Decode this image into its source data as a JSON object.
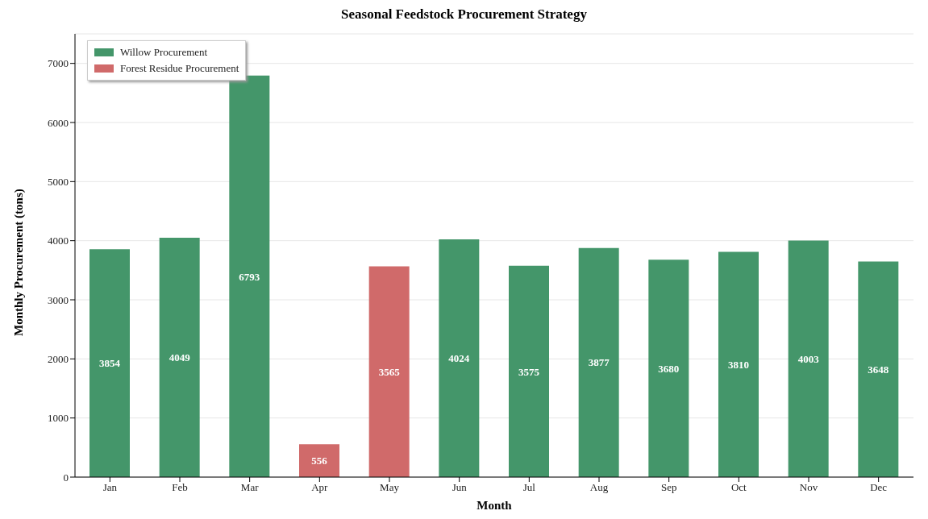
{
  "chart_data": {
    "type": "bar",
    "title": "Seasonal Feedstock Procurement Strategy",
    "xlabel": "Month",
    "ylabel": "Monthly Procurement (tons)",
    "categories": [
      "Jan",
      "Feb",
      "Mar",
      "Apr",
      "May",
      "Jun",
      "Jul",
      "Aug",
      "Sep",
      "Oct",
      "Nov",
      "Dec"
    ],
    "series": [
      {
        "name": "Willow Procurement",
        "color": "#44966a",
        "values": [
          3854,
          4049,
          6793,
          null,
          null,
          4024,
          3575,
          3877,
          3680,
          3810,
          4003,
          3648
        ]
      },
      {
        "name": "Forest Residue Procurement",
        "color": "#d06a6a",
        "values": [
          null,
          null,
          null,
          556,
          3565,
          null,
          null,
          null,
          null,
          null,
          null,
          null
        ]
      }
    ],
    "ylim": [
      0,
      7500
    ],
    "yticks": [
      0,
      1000,
      2000,
      3000,
      4000,
      5000,
      6000,
      7000
    ],
    "grid": "y",
    "legend": "top left",
    "data_labels": true
  }
}
